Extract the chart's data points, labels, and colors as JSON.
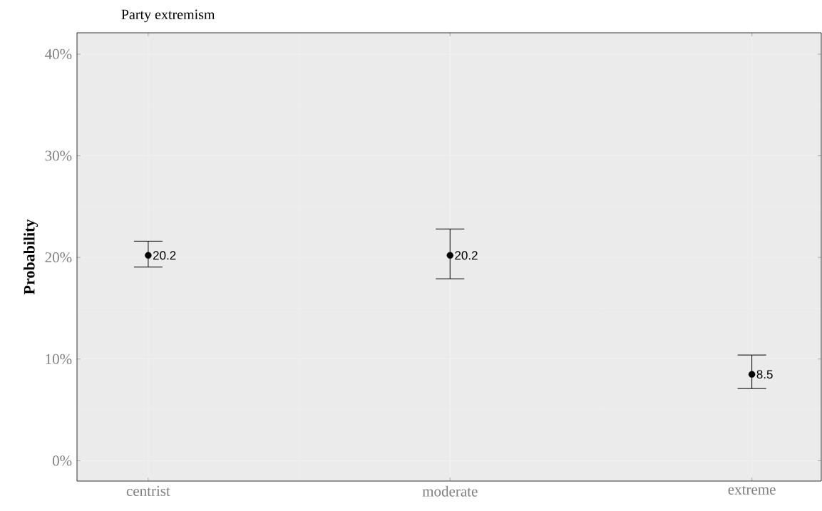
{
  "chart_data": {
    "type": "scatter",
    "title": "Party extremism",
    "ylabel": "Probability",
    "categories": [
      "centrist",
      "moderate",
      "extreme"
    ],
    "values": [
      20.2,
      20.2,
      8.5
    ],
    "errors": [
      [
        19.05,
        21.6
      ],
      [
        17.9,
        22.8
      ],
      [
        7.1,
        10.4
      ]
    ],
    "color": "#000000",
    "marker": "circle",
    "data_labels": true,
    "grid": true,
    "ylim": [
      -2,
      42.1
    ],
    "yticks": [
      {
        "value": 0,
        "label": "0%"
      },
      {
        "value": 10,
        "label": "10%"
      },
      {
        "value": 20,
        "label": "20%"
      },
      {
        "value": 30,
        "label": "30%"
      },
      {
        "value": 40,
        "label": "40%"
      }
    ]
  }
}
